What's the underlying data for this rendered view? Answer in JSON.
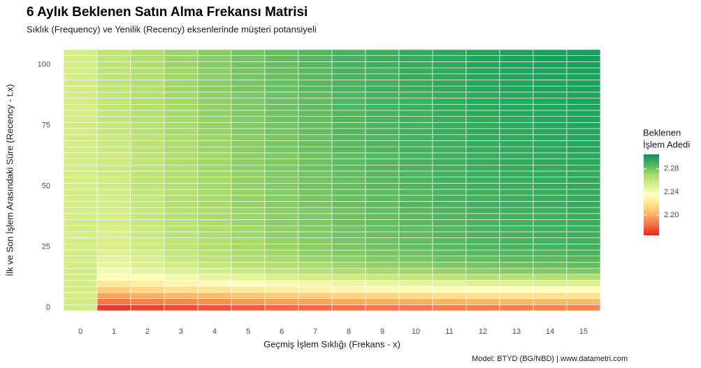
{
  "chart_data": {
    "type": "heatmap",
    "title": "6 Aylık Beklenen Satın Alma Frekansı Matrisi",
    "subtitle": "Sıklık (Frequency) ve Yenilik (Recency) eksenlerinde müşteri potansiyeli",
    "x_label": "Geçmiş İşlem Sıklığı (Frekans - x)",
    "y_label": "İlk ve Son İşlem Arasındaki Süre (Recency - t.x)",
    "caption": "Model: BTYD (BG/NBD) | www.datametri.com",
    "x": [
      0,
      1,
      2,
      3,
      4,
      5,
      6,
      7,
      8,
      9,
      10,
      11,
      12,
      13,
      14,
      15
    ],
    "y": [
      0,
      2.5,
      5,
      7.5,
      10,
      12.5,
      15,
      17.5,
      20,
      22.5,
      25,
      27.5,
      30,
      32.5,
      35,
      37.5,
      40,
      42.5,
      45,
      47.5,
      50,
      52.5,
      55,
      57.5,
      60,
      62.5,
      65,
      67.5,
      70,
      72.5,
      75,
      77.5,
      80,
      82.5,
      85,
      87.5,
      90,
      92.5,
      95,
      97.5,
      100,
      102.5,
      105
    ],
    "xlim": [
      -0.5,
      15.5
    ],
    "ylim": [
      -1.25,
      106.25
    ],
    "yticks": [
      0,
      25,
      50,
      75,
      100
    ],
    "z": [
      [
        2.255,
        2.17,
        2.173,
        2.175,
        2.177,
        2.179,
        2.181,
        2.182,
        2.184,
        2.185,
        2.186,
        2.187,
        2.188,
        2.188,
        2.189,
        2.189
      ],
      [
        2.255,
        2.185,
        2.188,
        2.19,
        2.192,
        2.194,
        2.196,
        2.197,
        2.199,
        2.2,
        2.201,
        2.202,
        2.203,
        2.203,
        2.204,
        2.204
      ],
      [
        2.255,
        2.197,
        2.2,
        2.203,
        2.205,
        2.208,
        2.21,
        2.211,
        2.213,
        2.214,
        2.216,
        2.217,
        2.218,
        2.219,
        2.219,
        2.22
      ],
      [
        2.255,
        2.21,
        2.214,
        2.217,
        2.22,
        2.223,
        2.225,
        2.227,
        2.229,
        2.23,
        2.232,
        2.233,
        2.235,
        2.235,
        2.236,
        2.237
      ],
      [
        2.255,
        2.222,
        2.226,
        2.23,
        2.233,
        2.236,
        2.239,
        2.241,
        2.244,
        2.245,
        2.247,
        2.248,
        2.25,
        2.251,
        2.252,
        2.252
      ],
      [
        2.255,
        2.232,
        2.237,
        2.241,
        2.245,
        2.248,
        2.251,
        2.254,
        2.256,
        2.258,
        2.26,
        2.262,
        2.264,
        2.264,
        2.265,
        2.266
      ],
      [
        2.255,
        2.24,
        2.245,
        2.25,
        2.254,
        2.258,
        2.261,
        2.264,
        2.267,
        2.269,
        2.271,
        2.273,
        2.275,
        2.276,
        2.277,
        2.278
      ],
      [
        2.255,
        2.245,
        2.25,
        2.255,
        2.259,
        2.263,
        2.266,
        2.269,
        2.272,
        2.274,
        2.276,
        2.278,
        2.28,
        2.281,
        2.282,
        2.283
      ],
      [
        2.255,
        2.248,
        2.253,
        2.258,
        2.262,
        2.266,
        2.269,
        2.272,
        2.275,
        2.277,
        2.279,
        2.281,
        2.283,
        2.284,
        2.285,
        2.286
      ],
      [
        2.255,
        2.25,
        2.255,
        2.26,
        2.264,
        2.268,
        2.271,
        2.274,
        2.277,
        2.279,
        2.281,
        2.283,
        2.285,
        2.286,
        2.287,
        2.288
      ],
      [
        2.255,
        2.252,
        2.257,
        2.262,
        2.266,
        2.27,
        2.273,
        2.276,
        2.279,
        2.281,
        2.283,
        2.285,
        2.287,
        2.288,
        2.289,
        2.29
      ],
      [
        2.255,
        2.252,
        2.257,
        2.262,
        2.266,
        2.27,
        2.273,
        2.276,
        2.279,
        2.281,
        2.283,
        2.285,
        2.287,
        2.288,
        2.289,
        2.29
      ],
      [
        2.255,
        2.253,
        2.258,
        2.263,
        2.267,
        2.271,
        2.274,
        2.277,
        2.28,
        2.282,
        2.284,
        2.286,
        2.288,
        2.289,
        2.29,
        2.291
      ],
      [
        2.255,
        2.253,
        2.258,
        2.263,
        2.267,
        2.271,
        2.274,
        2.277,
        2.28,
        2.282,
        2.284,
        2.286,
        2.288,
        2.289,
        2.29,
        2.291
      ],
      [
        2.255,
        2.254,
        2.259,
        2.264,
        2.268,
        2.272,
        2.275,
        2.278,
        2.281,
        2.283,
        2.285,
        2.287,
        2.289,
        2.29,
        2.291,
        2.292
      ],
      [
        2.255,
        2.254,
        2.259,
        2.264,
        2.268,
        2.272,
        2.275,
        2.278,
        2.281,
        2.283,
        2.285,
        2.287,
        2.289,
        2.29,
        2.291,
        2.292
      ],
      [
        2.255,
        2.254,
        2.259,
        2.264,
        2.268,
        2.272,
        2.275,
        2.278,
        2.281,
        2.283,
        2.285,
        2.287,
        2.289,
        2.29,
        2.291,
        2.292
      ],
      [
        2.255,
        2.255,
        2.26,
        2.265,
        2.269,
        2.273,
        2.276,
        2.279,
        2.282,
        2.284,
        2.286,
        2.288,
        2.29,
        2.291,
        2.292,
        2.293
      ],
      [
        2.255,
        2.255,
        2.26,
        2.265,
        2.269,
        2.273,
        2.276,
        2.279,
        2.282,
        2.284,
        2.286,
        2.288,
        2.29,
        2.291,
        2.292,
        2.293
      ],
      [
        2.255,
        2.255,
        2.26,
        2.265,
        2.269,
        2.273,
        2.276,
        2.279,
        2.282,
        2.284,
        2.286,
        2.288,
        2.29,
        2.291,
        2.292,
        2.293
      ],
      [
        2.255,
        2.256,
        2.261,
        2.266,
        2.27,
        2.274,
        2.277,
        2.28,
        2.283,
        2.285,
        2.287,
        2.289,
        2.291,
        2.292,
        2.293,
        2.294
      ],
      [
        2.255,
        2.256,
        2.261,
        2.266,
        2.27,
        2.274,
        2.277,
        2.28,
        2.283,
        2.285,
        2.287,
        2.289,
        2.291,
        2.292,
        2.293,
        2.294
      ],
      [
        2.255,
        2.256,
        2.261,
        2.266,
        2.27,
        2.274,
        2.277,
        2.28,
        2.283,
        2.285,
        2.287,
        2.289,
        2.291,
        2.292,
        2.293,
        2.294
      ],
      [
        2.255,
        2.257,
        2.262,
        2.267,
        2.271,
        2.275,
        2.278,
        2.281,
        2.284,
        2.286,
        2.288,
        2.29,
        2.292,
        2.293,
        2.294,
        2.295
      ],
      [
        2.255,
        2.257,
        2.262,
        2.267,
        2.271,
        2.275,
        2.278,
        2.281,
        2.284,
        2.286,
        2.288,
        2.29,
        2.292,
        2.293,
        2.294,
        2.295
      ],
      [
        2.255,
        2.257,
        2.262,
        2.267,
        2.271,
        2.275,
        2.278,
        2.281,
        2.284,
        2.286,
        2.288,
        2.29,
        2.292,
        2.293,
        2.294,
        2.295
      ],
      [
        2.255,
        2.258,
        2.263,
        2.268,
        2.272,
        2.276,
        2.279,
        2.282,
        2.285,
        2.287,
        2.289,
        2.291,
        2.293,
        2.294,
        2.295,
        2.296
      ],
      [
        2.255,
        2.258,
        2.263,
        2.268,
        2.272,
        2.276,
        2.279,
        2.282,
        2.285,
        2.287,
        2.289,
        2.291,
        2.293,
        2.294,
        2.295,
        2.296
      ],
      [
        2.255,
        2.258,
        2.263,
        2.268,
        2.272,
        2.276,
        2.279,
        2.282,
        2.285,
        2.287,
        2.289,
        2.291,
        2.293,
        2.294,
        2.295,
        2.296
      ],
      [
        2.255,
        2.259,
        2.264,
        2.269,
        2.273,
        2.277,
        2.28,
        2.283,
        2.286,
        2.288,
        2.29,
        2.292,
        2.294,
        2.295,
        2.296,
        2.297
      ],
      [
        2.255,
        2.259,
        2.264,
        2.269,
        2.273,
        2.277,
        2.28,
        2.283,
        2.286,
        2.288,
        2.29,
        2.292,
        2.294,
        2.295,
        2.296,
        2.297
      ],
      [
        2.255,
        2.259,
        2.264,
        2.269,
        2.273,
        2.277,
        2.28,
        2.283,
        2.286,
        2.288,
        2.29,
        2.292,
        2.294,
        2.295,
        2.296,
        2.297
      ],
      [
        2.255,
        2.26,
        2.265,
        2.27,
        2.274,
        2.278,
        2.281,
        2.284,
        2.287,
        2.289,
        2.291,
        2.293,
        2.295,
        2.296,
        2.297,
        2.298
      ],
      [
        2.255,
        2.26,
        2.265,
        2.27,
        2.274,
        2.278,
        2.281,
        2.284,
        2.287,
        2.289,
        2.291,
        2.293,
        2.295,
        2.296,
        2.297,
        2.298
      ],
      [
        2.255,
        2.26,
        2.265,
        2.27,
        2.274,
        2.278,
        2.281,
        2.284,
        2.287,
        2.289,
        2.291,
        2.293,
        2.295,
        2.296,
        2.297,
        2.298
      ],
      [
        2.255,
        2.26,
        2.265,
        2.27,
        2.274,
        2.278,
        2.281,
        2.284,
        2.287,
        2.289,
        2.291,
        2.293,
        2.295,
        2.296,
        2.297,
        2.298
      ],
      [
        2.255,
        2.261,
        2.266,
        2.271,
        2.275,
        2.279,
        2.282,
        2.285,
        2.288,
        2.29,
        2.292,
        2.294,
        2.296,
        2.297,
        2.298,
        2.299
      ],
      [
        2.255,
        2.261,
        2.266,
        2.271,
        2.275,
        2.279,
        2.282,
        2.285,
        2.288,
        2.29,
        2.292,
        2.294,
        2.296,
        2.297,
        2.298,
        2.299
      ],
      [
        2.255,
        2.261,
        2.266,
        2.271,
        2.275,
        2.279,
        2.282,
        2.285,
        2.288,
        2.29,
        2.292,
        2.294,
        2.296,
        2.297,
        2.298,
        2.299
      ],
      [
        2.255,
        2.261,
        2.266,
        2.271,
        2.275,
        2.279,
        2.282,
        2.285,
        2.288,
        2.29,
        2.292,
        2.294,
        2.296,
        2.297,
        2.298,
        2.299
      ],
      [
        2.255,
        2.262,
        2.267,
        2.272,
        2.276,
        2.28,
        2.283,
        2.286,
        2.289,
        2.291,
        2.293,
        2.295,
        2.297,
        2.298,
        2.299,
        2.3
      ],
      [
        2.255,
        2.262,
        2.267,
        2.272,
        2.276,
        2.28,
        2.283,
        2.286,
        2.289,
        2.291,
        2.293,
        2.295,
        2.297,
        2.298,
        2.299,
        2.3
      ],
      [
        2.255,
        2.262,
        2.267,
        2.272,
        2.276,
        2.28,
        2.283,
        2.286,
        2.289,
        2.291,
        2.293,
        2.295,
        2.297,
        2.298,
        2.299,
        2.3
      ]
    ],
    "colorscale": {
      "colors": [
        "#e8251a",
        "#f46d43",
        "#fdae61",
        "#fee08b",
        "#ffffbf",
        "#d9ef8b",
        "#a6d96a",
        "#4fb35f",
        "#00995a"
      ],
      "limits": [
        2.165,
        2.305
      ]
    },
    "legend": {
      "title": [
        "Beklenen",
        "İşlem Adedi"
      ],
      "ticks": [
        {
          "value": 2.2,
          "label": "2.20"
        },
        {
          "value": 2.24,
          "label": "2.24"
        },
        {
          "value": 2.28,
          "label": "2.28"
        }
      ]
    }
  }
}
